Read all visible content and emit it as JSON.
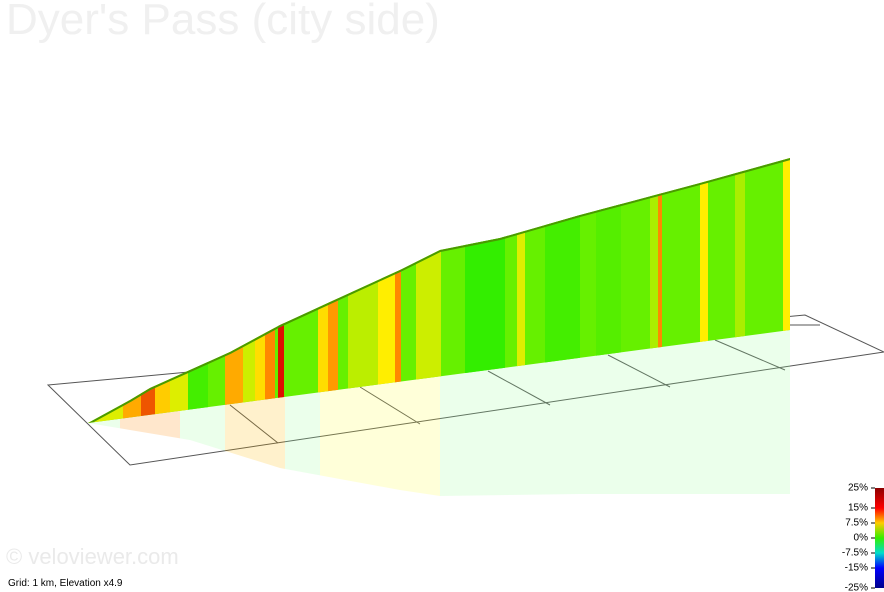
{
  "title": "Dyer's Pass (city side)",
  "watermark": "© veloviewer.com",
  "footer": "Grid: 1 km, Elevation x4.9",
  "legend": {
    "ticks": [
      {
        "value": 25,
        "label": "25%"
      },
      {
        "value": 15,
        "label": "15%"
      },
      {
        "value": 7.5,
        "label": "7.5%"
      },
      {
        "value": 0,
        "label": "0%"
      },
      {
        "value": -7.5,
        "label": "-7.5%"
      },
      {
        "value": -15,
        "label": "-15%"
      },
      {
        "value": -25,
        "label": "-25%"
      }
    ]
  }
}
